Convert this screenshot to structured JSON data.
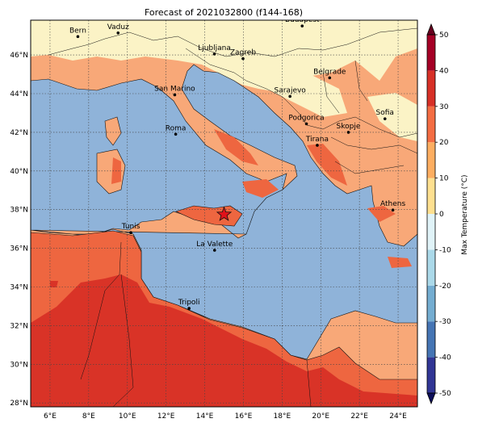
{
  "title": "Forecast of 2021032800 (f144-168)",
  "map": {
    "lon_range": [
      5,
      25
    ],
    "lat_range": [
      27.8,
      47.8
    ],
    "lon_ticks": [
      {
        "value": 6,
        "label": "6°E"
      },
      {
        "value": 8,
        "label": "8°E"
      },
      {
        "value": 10,
        "label": "10°E"
      },
      {
        "value": 12,
        "label": "12°E"
      },
      {
        "value": 14,
        "label": "14°E"
      },
      {
        "value": 16,
        "label": "16°E"
      },
      {
        "value": 18,
        "label": "18°E"
      },
      {
        "value": 20,
        "label": "20°E"
      },
      {
        "value": 22,
        "label": "22°E"
      },
      {
        "value": 24,
        "label": "24°E"
      }
    ],
    "lat_ticks": [
      {
        "value": 28,
        "label": "28°N"
      },
      {
        "value": 30,
        "label": "30°N"
      },
      {
        "value": 32,
        "label": "32°N"
      },
      {
        "value": 34,
        "label": "34°N"
      },
      {
        "value": 36,
        "label": "36°N"
      },
      {
        "value": 38,
        "label": "38°N"
      },
      {
        "value": 40,
        "label": "40°N"
      },
      {
        "value": 42,
        "label": "42°N"
      },
      {
        "value": 44,
        "label": "44°N"
      },
      {
        "value": 46,
        "label": "46°N"
      }
    ],
    "grid": "dotted",
    "cities": [
      {
        "name": "Bern",
        "lon": 7.44,
        "lat": 46.95
      },
      {
        "name": "Vaduz",
        "lon": 9.52,
        "lat": 47.14
      },
      {
        "name": "Budapest",
        "lon": 19.04,
        "lat": 47.5
      },
      {
        "name": "Ljubljana",
        "lon": 14.5,
        "lat": 46.05
      },
      {
        "name": "Zagreb",
        "lon": 15.98,
        "lat": 45.81
      },
      {
        "name": "Belgrade",
        "lon": 20.46,
        "lat": 44.82
      },
      {
        "name": "San Marino",
        "lon": 12.45,
        "lat": 43.94
      },
      {
        "name": "Sarajevo",
        "lon": 18.41,
        "lat": 43.86
      },
      {
        "name": "Sofia",
        "lon": 23.32,
        "lat": 42.7
      },
      {
        "name": "Podgorica",
        "lon": 19.26,
        "lat": 42.44
      },
      {
        "name": "Skopje",
        "lon": 21.43,
        "lat": 42.0
      },
      {
        "name": "Roma",
        "lon": 12.5,
        "lat": 41.9
      },
      {
        "name": "Tirana",
        "lon": 19.82,
        "lat": 41.33
      },
      {
        "name": "Athens",
        "lon": 23.73,
        "lat": 37.98
      },
      {
        "name": "Tunis",
        "lon": 10.18,
        "lat": 36.81
      },
      {
        "name": "La Valette",
        "lon": 14.51,
        "lat": 35.9
      },
      {
        "name": "Tripoli",
        "lon": 13.19,
        "lat": 32.89
      }
    ],
    "marker": {
      "symbol": "star",
      "lon": 15.0,
      "lat": 37.75,
      "color": "#e0121a"
    }
  },
  "colorbar": {
    "label": "Max Temperature (°C)",
    "min": -50,
    "max": 50,
    "ticks": [
      -50,
      -40,
      -30,
      -20,
      -10,
      0,
      10,
      20,
      30,
      40,
      50
    ],
    "colors": [
      "#313695",
      "#4575b4",
      "#74add1",
      "#abd9e9",
      "#e0f3f8",
      "#fee090",
      "#fdae61",
      "#f46d43",
      "#d73027",
      "#a50026"
    ],
    "extend": "both"
  },
  "palette": {
    "sea": "#8fb3d9",
    "band_0_10": "#fbf3c6",
    "band_10_20": "#f8a878",
    "band_20_30": "#ee6640",
    "band_30_40": "#d93327"
  }
}
